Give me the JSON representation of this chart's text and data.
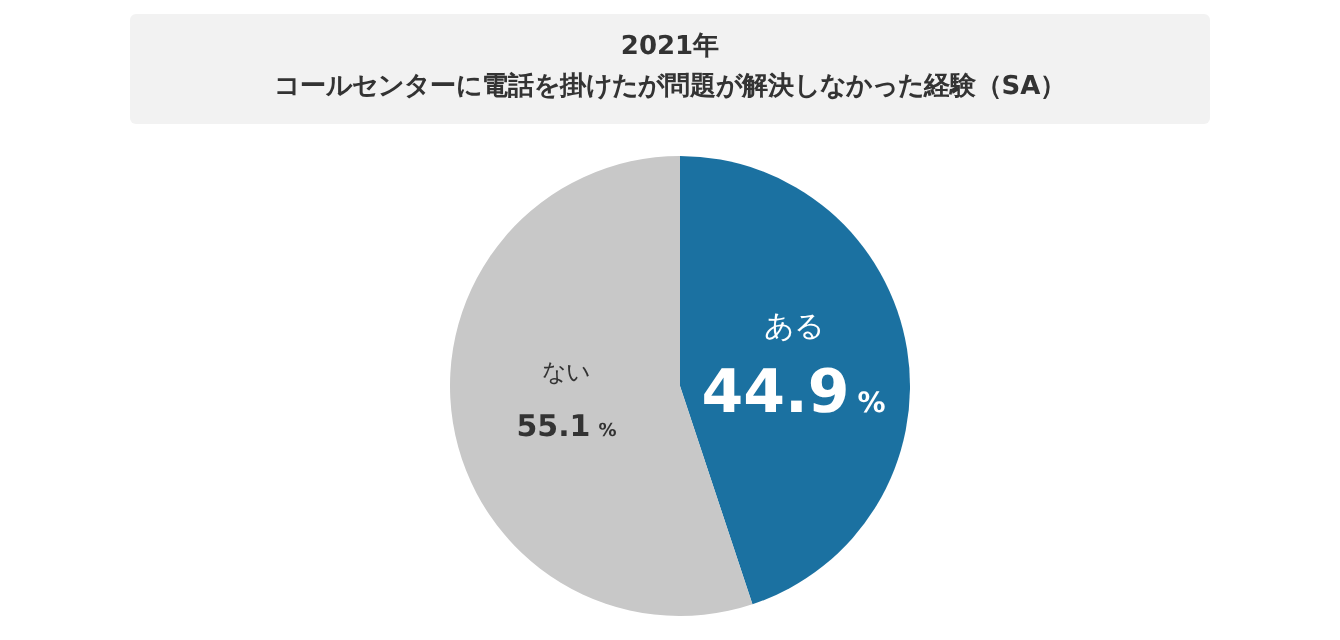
{
  "chart_data": {
    "type": "pie",
    "title": "2021年",
    "subtitle": "コールセンターに電話を掛けたが問題が解決しなかった経験（SA）",
    "categories": [
      "ある",
      "ない"
    ],
    "values": [
      44.9,
      55.1
    ],
    "colors": [
      "#1b71a1",
      "#c8c8c8"
    ],
    "value_labels": [
      "44.9%",
      "55.1%"
    ]
  }
}
